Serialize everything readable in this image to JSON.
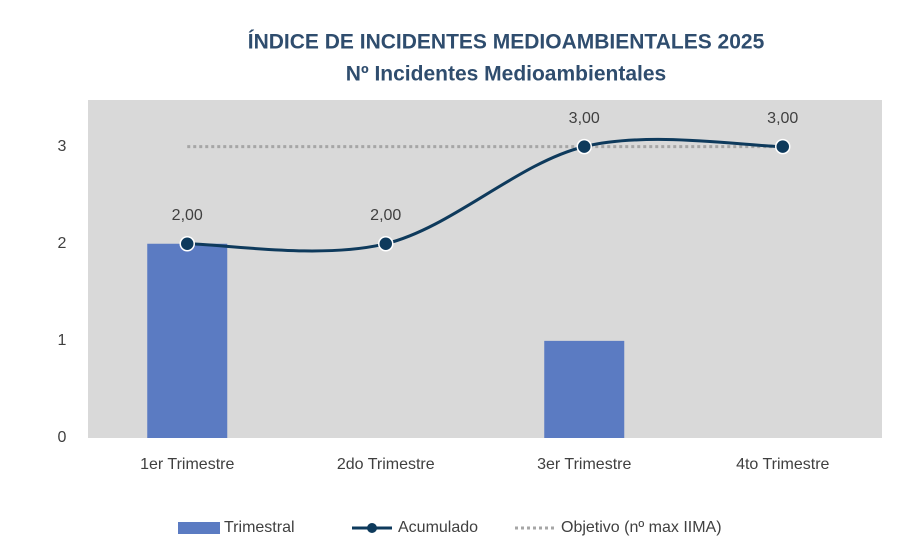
{
  "chart_data": {
    "type": "combo",
    "title": "ÍNDICE DE INCIDENTES MEDIOAMBIENTALES 2025",
    "subtitle": "Nº Incidentes Medioambientales",
    "categories": [
      "1er Trimestre",
      "2do Trimestre",
      "3er Trimestre",
      "4to Trimestre"
    ],
    "series": [
      {
        "name": "Trimestral",
        "type": "bar",
        "color": "#5b7bc2",
        "values": [
          2,
          0,
          1,
          0
        ]
      },
      {
        "name": "Acumulado",
        "type": "line",
        "smooth": true,
        "markers": true,
        "color": "#0e3a5c",
        "values": [
          2,
          2,
          3,
          3
        ],
        "value_labels": [
          "2,00",
          "2,00",
          "3,00",
          "3,00"
        ]
      },
      {
        "name": "Objetivo (nº max IIMA)",
        "type": "line",
        "dashed": true,
        "color": "#a6a6a6",
        "values": [
          3,
          3,
          3,
          3
        ]
      }
    ],
    "ylim": [
      0,
      3.48
    ],
    "yticks": [
      0,
      1,
      2,
      3
    ],
    "legend": "bottom"
  }
}
